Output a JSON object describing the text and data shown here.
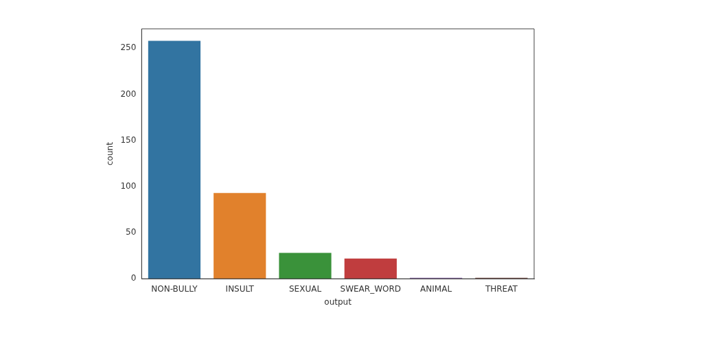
{
  "chart_data": {
    "type": "bar",
    "xlabel": "output",
    "ylabel": "count",
    "categories": [
      "NON-BULLY",
      "INSULT",
      "SEXUAL",
      "SWEAR_WORD",
      "ANIMAL",
      "THREAT"
    ],
    "values": [
      258,
      93,
      28,
      22,
      1,
      1
    ],
    "colors": [
      "#3274a1",
      "#e1812c",
      "#3a923a",
      "#c03d3e",
      "#9372b2",
      "#845b53"
    ],
    "ylim": [
      0,
      271
    ],
    "yticks": [
      0,
      50,
      100,
      150,
      200,
      250
    ],
    "grid": false,
    "legend": false
  }
}
